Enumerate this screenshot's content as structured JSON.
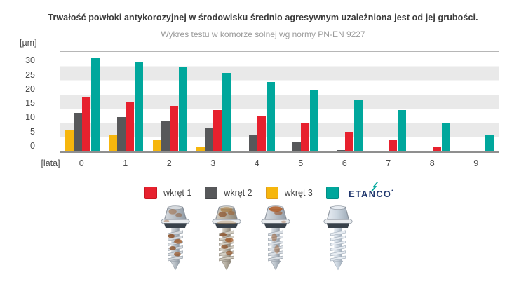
{
  "chart_data": {
    "type": "bar",
    "title": "Trwałość powłoki antykorozyjnej w środowisku średnio agresywnym uzależniona jest od jej grubości.",
    "subtitle": "Wykres testu w komorze solnej wg normy PN-EN 9227",
    "x_axis_label": "[lata]",
    "y_axis_label": "[µm]",
    "categories": [
      "0",
      "1",
      "2",
      "3",
      "4",
      "5",
      "6",
      "7",
      "8",
      "9"
    ],
    "y_ticks": [
      0,
      5,
      10,
      15,
      20,
      25,
      30
    ],
    "ylim": [
      0,
      35
    ],
    "grid": "horizontal gray stripes every 5 units",
    "gray_bands": [
      [
        5,
        10
      ],
      [
        15,
        20
      ],
      [
        25,
        30
      ]
    ],
    "band_color": "#e9e9e9",
    "legend_position": "bottom",
    "bar_order": [
      "wkręt 3",
      "wkręt 2",
      "wkręt 1",
      "ETANCO"
    ],
    "series": [
      {
        "name": "wkręt 1",
        "color": "#e7212e",
        "values": [
          19,
          17.5,
          16,
          14.5,
          12.5,
          10,
          7,
          4,
          1.5,
          0
        ]
      },
      {
        "name": "wkręt 2",
        "color": "#57585a",
        "values": [
          13.5,
          12,
          10.5,
          8.5,
          6,
          3.5,
          0.5,
          0,
          0,
          0
        ]
      },
      {
        "name": "wkręt 3",
        "color": "#f6b60d",
        "values": [
          7.5,
          6,
          4,
          1.5,
          0,
          0,
          0,
          0,
          0,
          0
        ]
      },
      {
        "name": "ETANCO",
        "color": "#00a79c",
        "values": [
          33,
          31.5,
          29.5,
          27.5,
          24.5,
          21.5,
          18,
          14.5,
          10,
          6
        ]
      }
    ]
  },
  "legend": {
    "items": [
      {
        "label": "wkręt 1",
        "color": "#e7212e",
        "border": "#c81722",
        "brand_logo": false
      },
      {
        "label": "wkręt 2",
        "color": "#57585a",
        "border": "#444548",
        "brand_logo": false
      },
      {
        "label": "wkręt 3",
        "color": "#f6b60d",
        "border": "#dd9b1a",
        "brand_logo": false
      },
      {
        "label": "ETANCO",
        "color": "#00a79c",
        "border": "#008f86",
        "brand_logo": true
      }
    ],
    "brand": {
      "name": "ETANCO",
      "text_color": "#21386e",
      "spark_color": "#00a79c"
    }
  },
  "photos": {
    "count": 4,
    "subject": "self-drilling screws with sealing washers after salt-chamber corrosion test, first three rusted, last one clean"
  }
}
